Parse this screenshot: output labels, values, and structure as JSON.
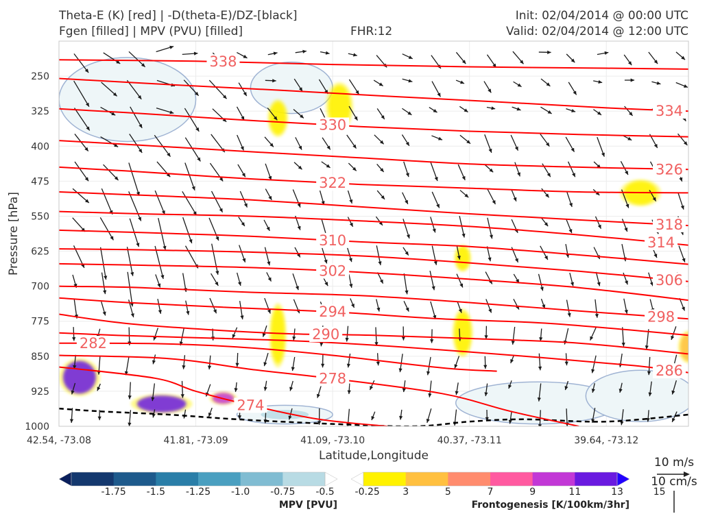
{
  "header": {
    "title_line1": "Theta-E (K) [red] | -D(theta-E)/DZ-[black]",
    "title_line2": "Fgen [filled] | MPV (PVU) [filled]",
    "fhr": "FHR:12",
    "init": "Init: 02/04/2014 @ 00:00 UTC",
    "valid": "Valid: 02/04/2014 @ 12:00 UTC"
  },
  "colors": {
    "theta_e_line": "#ff0000",
    "theta_e_label": "#f06060",
    "stability_dashed": "#000000",
    "mpv_contour": "#9fb3d3",
    "mpv_fill": "#eef6f8"
  },
  "chart_data": {
    "type": "cross-section",
    "xlabel": "Latitude,Longitude",
    "ylabel": "Pressure [hPa]",
    "x_ticks": [
      "42.54, -73.08",
      "41.81, -73.09",
      "41.09, -73.10",
      "40.37, -73.11",
      "39.64, -73.12"
    ],
    "y_ticks": [
      250,
      325,
      400,
      475,
      550,
      625,
      700,
      775,
      850,
      925,
      1000
    ],
    "ylim": [
      1000,
      175
    ],
    "y_scale": "linear-inverted",
    "x_range": [
      0,
      4.6
    ],
    "theta_e_contours": [
      {
        "level": 274,
        "pts": [
          [
            0,
            873
          ],
          [
            0.7,
            897
          ],
          [
            1.0,
            925
          ],
          [
            1.4,
            955
          ],
          [
            1.9,
            985
          ],
          [
            2.4,
            1000
          ]
        ]
      },
      {
        "level": 278,
        "pts": [
          [
            0,
            848
          ],
          [
            0.8,
            855
          ],
          [
            1.4,
            878
          ],
          [
            2.0,
            898
          ],
          [
            2.8,
            930
          ],
          [
            3.3,
            968
          ],
          [
            3.8,
            1000
          ]
        ]
      },
      {
        "level": 282,
        "pts": [
          [
            0,
            822
          ],
          [
            0.7,
            823
          ],
          [
            1.3,
            830
          ],
          [
            2.0,
            848
          ],
          [
            2.8,
            875
          ],
          [
            3.2,
            882
          ]
        ]
      },
      {
        "level": 286,
        "pts": [
          [
            0,
            800
          ],
          [
            0.5,
            806
          ],
          [
            1.2,
            812
          ],
          [
            1.8,
            818
          ],
          [
            2.5,
            830
          ],
          [
            3.4,
            850
          ],
          [
            4.2,
            870
          ],
          [
            4.6,
            885
          ]
        ]
      },
      {
        "level": 290,
        "pts": [
          [
            0,
            760
          ],
          [
            0.5,
            780
          ],
          [
            1.2,
            795
          ],
          [
            1.7,
            802
          ],
          [
            2.3,
            805
          ],
          [
            3.0,
            812
          ],
          [
            3.8,
            822
          ],
          [
            4.6,
            845
          ]
        ]
      },
      {
        "level": 294,
        "pts": [
          [
            0,
            725
          ],
          [
            0.5,
            735
          ],
          [
            1.2,
            745
          ],
          [
            2.0,
            755
          ],
          [
            2.8,
            770
          ],
          [
            3.6,
            780
          ],
          [
            4.6,
            805
          ]
        ]
      },
      {
        "level": 298,
        "pts": [
          [
            0,
            700
          ],
          [
            0.6,
            703
          ],
          [
            1.4,
            713
          ],
          [
            2.2,
            720
          ],
          [
            3.0,
            735
          ],
          [
            3.8,
            753
          ],
          [
            4.6,
            770
          ]
        ]
      },
      {
        "level": 302,
        "pts": [
          [
            0,
            652
          ],
          [
            0.6,
            655
          ],
          [
            1.4,
            660
          ],
          [
            2.2,
            670
          ],
          [
            3.0,
            685
          ],
          [
            3.8,
            703
          ],
          [
            4.6,
            730
          ]
        ]
      },
      {
        "level": 306,
        "pts": [
          [
            0,
            620
          ],
          [
            0.6,
            622
          ],
          [
            1.4,
            627
          ],
          [
            2.2,
            635
          ],
          [
            3.0,
            650
          ],
          [
            3.8,
            668
          ],
          [
            4.6,
            690
          ]
        ]
      },
      {
        "level": 310,
        "pts": [
          [
            0,
            580
          ],
          [
            0.6,
            585
          ],
          [
            1.4,
            593
          ],
          [
            2.2,
            605
          ],
          [
            3.0,
            615
          ],
          [
            3.8,
            633
          ],
          [
            4.6,
            653
          ]
        ]
      },
      {
        "level": 314,
        "pts": [
          [
            0,
            540
          ],
          [
            0.6,
            545
          ],
          [
            1.4,
            550
          ],
          [
            2.2,
            560
          ],
          [
            3.0,
            572
          ],
          [
            3.8,
            590
          ],
          [
            4.6,
            612
          ]
        ]
      },
      {
        "level": 318,
        "pts": [
          [
            0,
            498
          ],
          [
            0.6,
            505
          ],
          [
            1.4,
            515
          ],
          [
            2.2,
            530
          ],
          [
            3.0,
            545
          ],
          [
            3.8,
            558
          ],
          [
            4.6,
            570
          ]
        ]
      },
      {
        "level": 322,
        "pts": [
          [
            0,
            445
          ],
          [
            0.6,
            455
          ],
          [
            1.4,
            470
          ],
          [
            2.2,
            482
          ],
          [
            3.0,
            490
          ],
          [
            3.8,
            498
          ],
          [
            4.6,
            500
          ]
        ]
      },
      {
        "level": 326,
        "pts": [
          [
            0,
            388
          ],
          [
            0.6,
            398
          ],
          [
            1.4,
            412
          ],
          [
            2.2,
            425
          ],
          [
            3.0,
            438
          ],
          [
            3.8,
            445
          ],
          [
            4.6,
            450
          ]
        ]
      },
      {
        "level": 330,
        "pts": [
          [
            0,
            320
          ],
          [
            0.6,
            330
          ],
          [
            1.4,
            345
          ],
          [
            2.2,
            358
          ],
          [
            3.0,
            368
          ],
          [
            3.8,
            375
          ],
          [
            4.6,
            380
          ]
        ]
      },
      {
        "level": 334,
        "pts": [
          [
            0,
            255
          ],
          [
            0.8,
            268
          ],
          [
            1.6,
            280
          ],
          [
            2.4,
            293
          ],
          [
            3.2,
            305
          ],
          [
            4.0,
            318
          ],
          [
            4.6,
            325
          ]
        ]
      },
      {
        "level": 338,
        "pts": [
          [
            0,
            215
          ],
          [
            1.0,
            218
          ],
          [
            2.0,
            225
          ],
          [
            3.0,
            230
          ],
          [
            4.0,
            233
          ],
          [
            4.6,
            235
          ]
        ]
      }
    ],
    "stability_line": {
      "pts": [
        [
          0,
          962
        ],
        [
          0.3,
          968
        ],
        [
          0.8,
          975
        ],
        [
          1.3,
          985
        ],
        [
          2.0,
          995
        ],
        [
          2.6,
          1000
        ],
        [
          3.0,
          990
        ],
        [
          3.4,
          985
        ],
        [
          4.0,
          990
        ],
        [
          4.6,
          975
        ]
      ]
    },
    "fgen_blobs": [
      {
        "x": 0.15,
        "p": 895,
        "rx": 0.12,
        "rp": 35,
        "level": 13
      },
      {
        "x": 0.75,
        "p": 952,
        "rx": 0.18,
        "rp": 18,
        "level": 13
      },
      {
        "x": 1.2,
        "p": 940,
        "rx": 0.08,
        "rp": 12,
        "level": 11
      },
      {
        "x": 1.6,
        "p": 340,
        "rx": 0.06,
        "rp": 35,
        "level": 3
      },
      {
        "x": 1.6,
        "p": 805,
        "rx": 0.05,
        "rp": 60,
        "level": 3
      },
      {
        "x": 2.05,
        "p": 315,
        "rx": 0.08,
        "rp": 45,
        "level": 3
      },
      {
        "x": 2.95,
        "p": 640,
        "rx": 0.05,
        "rp": 25,
        "level": 3
      },
      {
        "x": 2.95,
        "p": 800,
        "rx": 0.06,
        "rp": 45,
        "level": 3
      },
      {
        "x": 4.25,
        "p": 500,
        "rx": 0.12,
        "rp": 25,
        "level": 3
      },
      {
        "x": 4.6,
        "p": 830,
        "rx": 0.06,
        "rp": 30,
        "level": 5
      }
    ],
    "mpv_regions": [
      {
        "x": 0.5,
        "p": 300,
        "rx": 0.5,
        "rp": 90,
        "level": -0.25
      },
      {
        "x": 1.7,
        "p": 275,
        "rx": 0.3,
        "rp": 55,
        "level": -0.25
      },
      {
        "x": 3.5,
        "p": 950,
        "rx": 0.6,
        "rp": 45,
        "level": -0.25
      },
      {
        "x": 4.25,
        "p": 935,
        "rx": 0.4,
        "rp": 55,
        "level": -0.25
      },
      {
        "x": 1.65,
        "p": 975,
        "rx": 0.35,
        "rp": 20,
        "level": -0.5
      }
    ],
    "colorbar_mpv": {
      "label": "MPV [PVU]",
      "ticks": [
        "-1.75",
        "-1.5",
        "-1.25",
        "-1.0",
        "-0.75",
        "-0.5",
        "-0.25"
      ],
      "colors": [
        "#0a1f5c",
        "#14386e",
        "#1e5a8c",
        "#2a7ea8",
        "#4a9fc0",
        "#80bcd2",
        "#b8dbe4",
        "#ffffff"
      ]
    },
    "colorbar_fgen": {
      "label": "Frontogenesis [K/100km/3hr]",
      "ticks": [
        "3",
        "5",
        "7",
        "9",
        "11",
        "13",
        "15"
      ],
      "colors": [
        "#ffffff",
        "#fff200",
        "#ffc040",
        "#ff8c6e",
        "#ff5aa0",
        "#c238d6",
        "#6a1ae0",
        "#2200ff"
      ]
    },
    "vector_key": {
      "wind": "10 m/s",
      "vertical": "10 cm/s"
    }
  }
}
